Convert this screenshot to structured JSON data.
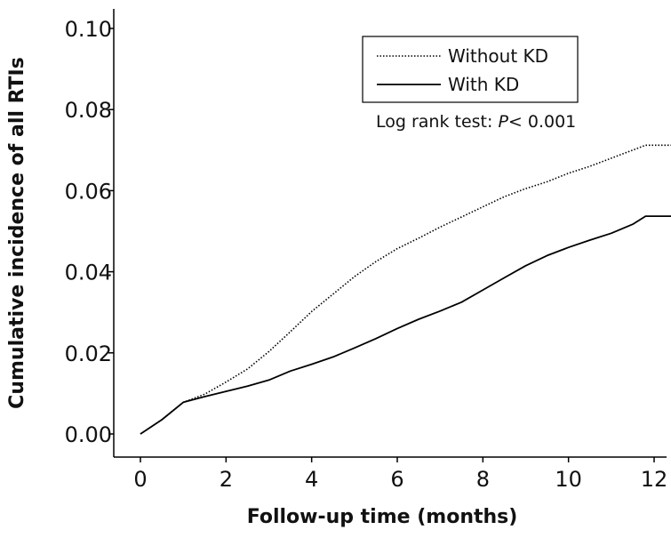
{
  "chart_data": {
    "type": "line",
    "title": "",
    "xlabel": "Follow-up time (months)",
    "ylabel": "Cumulative incidence of all RTIs",
    "xlim": [
      0,
      12.6
    ],
    "ylim": [
      0,
      0.1
    ],
    "x_ticks": [
      0,
      2,
      4,
      6,
      8,
      10,
      12
    ],
    "x_tick_labels": [
      "0",
      "2",
      "4",
      "6",
      "8",
      "10",
      "12"
    ],
    "y_ticks": [
      0,
      0.02,
      0.04,
      0.06,
      0.08,
      0.1
    ],
    "y_tick_labels": [
      "0.00",
      "0.02",
      "0.04",
      "0.06",
      "0.08",
      "0.10"
    ],
    "grid": false,
    "legend_position": "top-right",
    "annotation": {
      "prefix": "Log rank test: ",
      "p_symbol": "P",
      "suffix": "< 0.001"
    },
    "series": [
      {
        "name": "Without KD",
        "line_style": "dotted",
        "x": [
          0,
          0.5,
          1.0,
          1.5,
          2.0,
          2.5,
          3.0,
          3.5,
          4.0,
          4.5,
          5.0,
          5.5,
          6.0,
          6.5,
          7.0,
          7.5,
          8.0,
          8.5,
          9.0,
          9.5,
          10.0,
          10.5,
          11.0,
          11.5,
          11.8,
          12.6
        ],
        "values": [
          0,
          0.0035,
          0.0078,
          0.0098,
          0.0128,
          0.016,
          0.0203,
          0.0252,
          0.0302,
          0.0345,
          0.0388,
          0.0425,
          0.0457,
          0.0483,
          0.051,
          0.0535,
          0.056,
          0.0585,
          0.0605,
          0.0622,
          0.0643,
          0.066,
          0.068,
          0.07,
          0.0712,
          0.0712
        ]
      },
      {
        "name": "With KD",
        "line_style": "solid",
        "x": [
          0,
          0.5,
          1.0,
          1.5,
          2.0,
          2.5,
          3.0,
          3.5,
          4.0,
          4.5,
          5.0,
          5.5,
          6.0,
          6.5,
          7.0,
          7.5,
          8.0,
          8.5,
          9.0,
          9.5,
          10.0,
          10.5,
          11.0,
          11.5,
          11.8,
          12.6
        ],
        "values": [
          0,
          0.0035,
          0.0078,
          0.0092,
          0.0105,
          0.0118,
          0.0133,
          0.0155,
          0.0172,
          0.019,
          0.0212,
          0.0235,
          0.026,
          0.0283,
          0.0303,
          0.0325,
          0.0355,
          0.0385,
          0.0415,
          0.044,
          0.046,
          0.0478,
          0.0495,
          0.0517,
          0.0537,
          0.0537
        ]
      }
    ]
  }
}
